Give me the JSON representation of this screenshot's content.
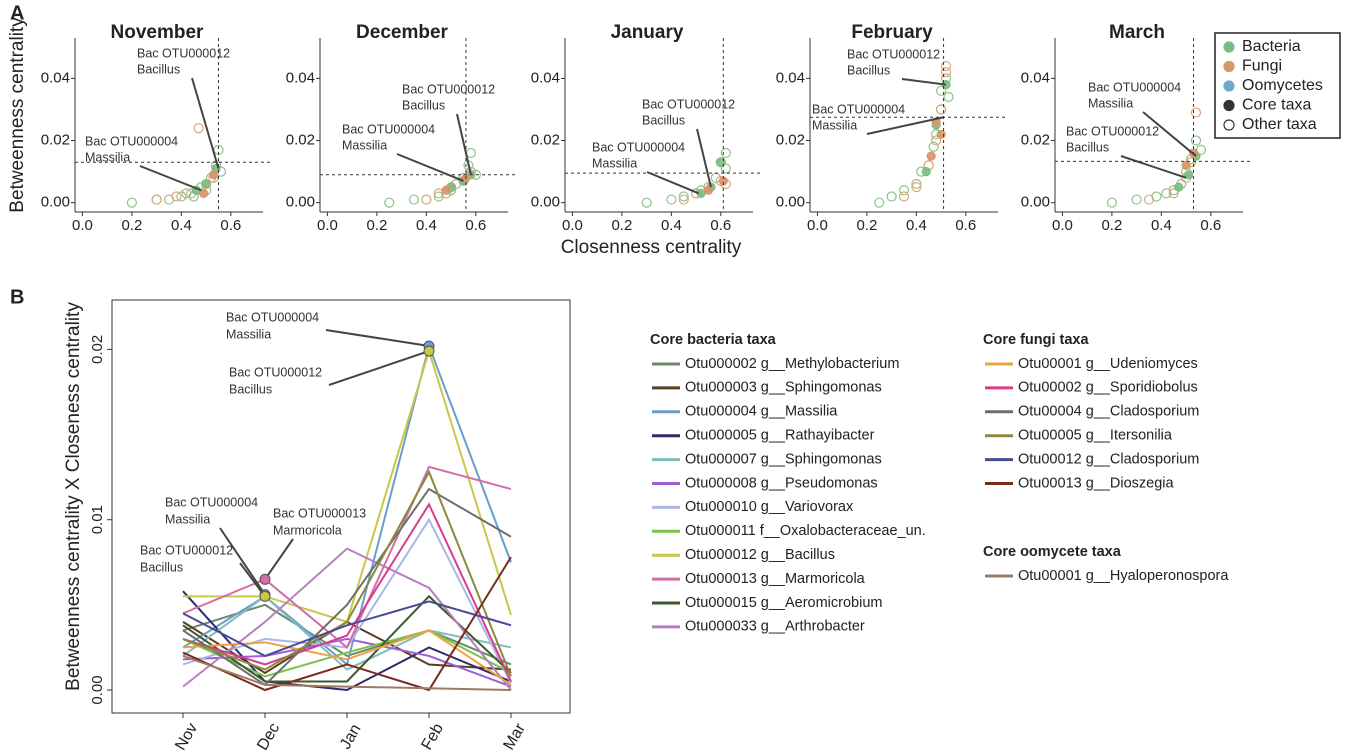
{
  "panel_labels": [
    "A",
    "B"
  ],
  "chart_data": [
    {
      "type": "scatter",
      "title": "November",
      "y_label": "Betweenness centrality",
      "xlim": [
        -0.03,
        0.73
      ],
      "ylim": [
        -0.003,
        0.053
      ],
      "xticks": [
        {
          "value": 0,
          "label": "0.0"
        },
        0.2,
        0.4,
        0.6
      ],
      "yticks": [
        {
          "value": 0,
          "label": "0.00"
        },
        {
          "value": 0.02,
          "label": "0.02"
        },
        {
          "value": 0.04,
          "label": "0.04"
        }
      ],
      "vline": 0.55,
      "hline": 0.013,
      "series": [
        {
          "color": "#8cc48c",
          "filled": false,
          "x": [
            0.2,
            0.3,
            0.35,
            0.4,
            0.42,
            0.45,
            0.48,
            0.5,
            0.52,
            0.54,
            0.55,
            0.56
          ],
          "y": [
            0.0,
            0.001,
            0.001,
            0.002,
            0.003,
            0.002,
            0.005,
            0.004,
            0.008,
            0.012,
            0.017,
            0.01
          ]
        },
        {
          "color": "#e0a47c",
          "filled": false,
          "x": [
            0.3,
            0.38,
            0.44,
            0.47,
            0.5,
            0.53
          ],
          "y": [
            0.001,
            0.002,
            0.003,
            0.024,
            0.006,
            0.008
          ]
        },
        {
          "color": "#7dbb80",
          "filled": true,
          "x": [
            0.46,
            0.5,
            0.54
          ],
          "y": [
            0.004,
            0.006,
            0.011
          ]
        },
        {
          "color": "#d8946a",
          "filled": true,
          "x": [
            0.49,
            0.53
          ],
          "y": [
            0.003,
            0.009
          ]
        }
      ],
      "annotations": [
        {
          "lines": [
            "Bac OTU000012",
            "Bacillus"
          ],
          "x": 0.55,
          "y": 0.011
        },
        {
          "lines": [
            "Bac OTU000004",
            "Massilia"
          ],
          "x": 0.48,
          "y": 0.004
        }
      ]
    },
    {
      "type": "scatter",
      "title": "December",
      "xlim": [
        -0.03,
        0.73
      ],
      "ylim": [
        -0.003,
        0.053
      ],
      "xticks": [
        {
          "value": 0,
          "label": "0.0"
        },
        0.2,
        0.4,
        0.6
      ],
      "yticks": [
        {
          "value": 0,
          "label": "0.00"
        },
        {
          "value": 0.02,
          "label": "0.02"
        },
        {
          "value": 0.04,
          "label": "0.04"
        }
      ],
      "vline": 0.56,
      "hline": 0.009,
      "series": [
        {
          "color": "#8cc48c",
          "filled": false,
          "x": [
            0.25,
            0.35,
            0.4,
            0.45,
            0.48,
            0.5,
            0.52,
            0.55,
            0.57,
            0.58,
            0.6
          ],
          "y": [
            0.0,
            0.001,
            0.001,
            0.002,
            0.003,
            0.004,
            0.006,
            0.008,
            0.012,
            0.016,
            0.009
          ]
        },
        {
          "color": "#e0a47c",
          "filled": false,
          "x": [
            0.4,
            0.45,
            0.5,
            0.55,
            0.58
          ],
          "y": [
            0.001,
            0.003,
            0.005,
            0.007,
            0.01
          ]
        },
        {
          "color": "#7dbb80",
          "filled": true,
          "x": [
            0.5,
            0.55,
            0.58
          ],
          "y": [
            0.005,
            0.007,
            0.009
          ]
        },
        {
          "color": "#d8946a",
          "filled": true,
          "x": [
            0.48,
            0.56
          ],
          "y": [
            0.004,
            0.008
          ]
        }
      ],
      "annotations": [
        {
          "lines": [
            "Bac OTU000012",
            "Bacillus"
          ],
          "x": 0.58,
          "y": 0.009
        },
        {
          "lines": [
            "Bac OTU000004",
            "Massilia"
          ],
          "x": 0.55,
          "y": 0.007
        }
      ]
    },
    {
      "type": "scatter",
      "title": "January",
      "x_label": "Closenness centrality",
      "xlim": [
        -0.03,
        0.73
      ],
      "ylim": [
        -0.003,
        0.053
      ],
      "xticks": [
        {
          "value": 0,
          "label": "0.0"
        },
        0.2,
        0.4,
        0.6
      ],
      "yticks": [
        {
          "value": 0,
          "label": "0.00"
        },
        {
          "value": 0.02,
          "label": "0.02"
        },
        {
          "value": 0.04,
          "label": "0.04"
        }
      ],
      "vline": 0.61,
      "hline": 0.0095,
      "series": [
        {
          "color": "#8cc48c",
          "filled": false,
          "x": [
            0.3,
            0.4,
            0.45,
            0.5,
            0.52,
            0.55,
            0.58,
            0.6,
            0.62,
            0.62
          ],
          "y": [
            0.0,
            0.001,
            0.002,
            0.003,
            0.004,
            0.005,
            0.008,
            0.013,
            0.011,
            0.016
          ]
        },
        {
          "color": "#e0a47c",
          "filled": false,
          "x": [
            0.45,
            0.5,
            0.55,
            0.6,
            0.62
          ],
          "y": [
            0.001,
            0.003,
            0.005,
            0.007,
            0.006
          ]
        },
        {
          "color": "#7dbb80",
          "filled": true,
          "x": [
            0.52,
            0.56,
            0.6
          ],
          "y": [
            0.003,
            0.005,
            0.013
          ]
        },
        {
          "color": "#d8946a",
          "filled": true,
          "x": [
            0.55,
            0.61
          ],
          "y": [
            0.004,
            0.007
          ]
        }
      ],
      "annotations": [
        {
          "lines": [
            "Bac OTU000012",
            "Bacillus"
          ],
          "x": 0.56,
          "y": 0.005
        },
        {
          "lines": [
            "Bac OTU000004",
            "Massilia"
          ],
          "x": 0.51,
          "y": 0.003
        }
      ]
    },
    {
      "type": "scatter",
      "title": "February",
      "xlim": [
        -0.03,
        0.73
      ],
      "ylim": [
        -0.003,
        0.053
      ],
      "xticks": [
        {
          "value": 0,
          "label": "0.0"
        },
        0.2,
        0.4,
        0.6
      ],
      "yticks": [
        {
          "value": 0,
          "label": "0.00"
        },
        {
          "value": 0.02,
          "label": "0.02"
        },
        {
          "value": 0.04,
          "label": "0.04"
        }
      ],
      "vline": 0.51,
      "hline": 0.0275,
      "series": [
        {
          "color": "#8cc48c",
          "filled": false,
          "x": [
            0.25,
            0.3,
            0.35,
            0.4,
            0.42,
            0.45,
            0.47,
            0.48,
            0.5,
            0.5,
            0.52,
            0.53
          ],
          "y": [
            0.0,
            0.002,
            0.004,
            0.006,
            0.01,
            0.012,
            0.018,
            0.022,
            0.03,
            0.036,
            0.04,
            0.034
          ]
        },
        {
          "color": "#e0a47c",
          "filled": false,
          "x": [
            0.35,
            0.4,
            0.45,
            0.48,
            0.5,
            0.52,
            0.52
          ],
          "y": [
            0.002,
            0.005,
            0.012,
            0.02,
            0.03,
            0.042,
            0.044
          ]
        },
        {
          "color": "#7dbb80",
          "filled": true,
          "x": [
            0.44,
            0.48,
            0.52
          ],
          "y": [
            0.01,
            0.025,
            0.038
          ]
        },
        {
          "color": "#d8946a",
          "filled": true,
          "x": [
            0.46,
            0.48,
            0.5
          ],
          "y": [
            0.015,
            0.026,
            0.022
          ]
        }
      ],
      "annotations": [
        {
          "lines": [
            "Bac OTU000012",
            "Bacillus"
          ],
          "x": 0.52,
          "y": 0.038
        },
        {
          "lines": [
            "Bac OTU000004",
            "Massilia"
          ],
          "x": 0.51,
          "y": 0.0275
        }
      ]
    },
    {
      "type": "scatter",
      "title": "March",
      "xlim": [
        -0.03,
        0.73
      ],
      "ylim": [
        -0.003,
        0.053
      ],
      "xticks": [
        {
          "value": 0,
          "label": "0.0"
        },
        0.2,
        0.4,
        0.6
      ],
      "yticks": [
        {
          "value": 0,
          "label": "0.00"
        },
        {
          "value": 0.02,
          "label": "0.02"
        },
        {
          "value": 0.04,
          "label": "0.04"
        }
      ],
      "vline": 0.53,
      "hline": 0.0133,
      "series": [
        {
          "color": "#8cc48c",
          "filled": false,
          "x": [
            0.2,
            0.3,
            0.38,
            0.42,
            0.45,
            0.48,
            0.5,
            0.52,
            0.54,
            0.56
          ],
          "y": [
            0.0,
            0.001,
            0.002,
            0.003,
            0.004,
            0.006,
            0.01,
            0.014,
            0.02,
            0.017
          ]
        },
        {
          "color": "#e0a47c",
          "filled": false,
          "x": [
            0.35,
            0.45,
            0.5,
            0.52,
            0.54
          ],
          "y": [
            0.001,
            0.003,
            0.008,
            0.013,
            0.029
          ]
        },
        {
          "color": "#7dbb80",
          "filled": true,
          "x": [
            0.47,
            0.51,
            0.54
          ],
          "y": [
            0.005,
            0.009,
            0.015
          ]
        },
        {
          "color": "#d8946a",
          "filled": true,
          "x": [
            0.5,
            0.53
          ],
          "y": [
            0.012,
            0.016
          ]
        }
      ],
      "annotations": [
        {
          "lines": [
            "Bac OTU000004",
            "Massilia"
          ],
          "x": 0.54,
          "y": 0.015
        },
        {
          "lines": [
            "Bac OTU000012",
            "Bacillus"
          ],
          "x": 0.5,
          "y": 0.008
        }
      ],
      "legend": [
        {
          "label": "Bacteria",
          "color": "#7dbb80",
          "filled": true
        },
        {
          "label": "Fungi",
          "color": "#d8946a",
          "filled": true
        },
        {
          "label": "Oomycetes",
          "color": "#6fa8d0",
          "filled": true
        },
        {
          "label": "Core taxa",
          "color": "#333333",
          "filled": true
        },
        {
          "label": "Other taxa",
          "color": "#333333",
          "filled": false
        }
      ]
    },
    {
      "type": "line",
      "y_label": "Betweenness centrality X Closeness centrality",
      "categories": [
        "Nov",
        "Dec",
        "Jan",
        "Feb",
        "Mar"
      ],
      "ylim": [
        -0.00135,
        0.0229
      ],
      "yticks": [
        {
          "value": 0,
          "label": "0.00"
        },
        {
          "value": 0.01,
          "label": "0.01"
        },
        {
          "value": 0.02,
          "label": "0.02"
        }
      ],
      "series_groups": [
        {
          "title": "Core bacteria taxa",
          "series": [
            {
              "name": "Otu000002 g__Methylobacterium",
              "color": "#6b8a6b",
              "values": [
                0.0035,
                0.005,
                0.002,
                0.0035,
                0.0015
              ]
            },
            {
              "name": "Otu000003 g__Sphingomonas",
              "color": "#5a3e22",
              "values": [
                0.004,
                0.001,
                0.004,
                0.0015,
                0.0012
              ]
            },
            {
              "name": "Otu000004 g__Massilia",
              "color": "#6a9ec8",
              "values": [
                0.0025,
                0.0055,
                0.0015,
                0.0202,
                0.0075
              ]
            },
            {
              "name": "Otu000005 g__Rathayibacter",
              "color": "#2e2a6e",
              "values": [
                0.0058,
                0.0005,
                0.0,
                0.0025,
                0.0005
              ]
            },
            {
              "name": "Otu000007 g__Sphingomonas",
              "color": "#7fbcbc",
              "values": [
                0.002,
                0.0055,
                0.0012,
                0.0035,
                0.0025
              ]
            },
            {
              "name": "Otu000008 g__Pseudomonas",
              "color": "#9b5fd6",
              "values": [
                0.0018,
                0.002,
                0.003,
                0.002,
                0.0002
              ]
            },
            {
              "name": "Otu000010 g__Variovorax",
              "color": "#a9b6ea",
              "values": [
                0.0015,
                0.003,
                0.0025,
                0.01,
                0.0004
              ]
            },
            {
              "name": "Otu000011 f__Oxalobacteraceae_un.",
              "color": "#7cc24c",
              "values": [
                0.003,
                0.0008,
                0.0022,
                0.0035,
                0.001
              ]
            },
            {
              "name": "Otu000012 g__Bacillus",
              "color": "#c9c648",
              "values": [
                0.0055,
                0.0055,
                0.004,
                0.0199,
                0.0044
              ]
            },
            {
              "name": "Otu000013 g__Marmoricola",
              "color": "#d16ea8",
              "values": [
                0.0045,
                0.0065,
                0.0025,
                0.0131,
                0.0118
              ]
            },
            {
              "name": "Otu000015 g__Aeromicrobium",
              "color": "#3d5a2e",
              "values": [
                0.0038,
                0.0005,
                0.0005,
                0.0055,
                0.001
              ]
            },
            {
              "name": "Otu000033 g__Arthrobacter",
              "color": "#b77fc0",
              "values": [
                0.0002,
                0.004,
                0.0083,
                0.006,
                0.0
              ]
            }
          ]
        },
        {
          "title": "Core fungi taxa",
          "series": [
            {
              "name": "Otu00001 g__Udeniomyces",
              "color": "#f0a040",
              "values": [
                0.0025,
                0.0028,
                0.0018,
                0.0035,
                0.0003
              ]
            },
            {
              "name": "Otu00002 g__Sporidiobolus",
              "color": "#d83c8a",
              "values": [
                0.003,
                0.0015,
                0.0032,
                0.0109,
                0.0005
              ]
            },
            {
              "name": "Otu00004 g__Cladosporium",
              "color": "#6e6e6e",
              "values": [
                0.0035,
                0.0003,
                0.005,
                0.0118,
                0.009
              ]
            },
            {
              "name": "Otu00005 g__Itersonilia",
              "color": "#8a8a3a",
              "values": [
                0.003,
                0.0012,
                0.004,
                0.0128,
                0.0008
              ]
            },
            {
              "name": "Otu00012 g__Cladosporium",
              "color": "#4a4a96",
              "values": [
                0.0045,
                0.002,
                0.0038,
                0.0052,
                0.0038
              ]
            },
            {
              "name": "Otu00013 g__Dioszegia",
              "color": "#7a2a20",
              "values": [
                0.0022,
                0.0,
                0.0015,
                0.0,
                0.0078
              ]
            }
          ]
        },
        {
          "title": "Core oomycete taxa",
          "series": [
            {
              "name": "Otu00001 g__Hyaloperonospora",
              "color": "#a07a60",
              "values": [
                0.002,
                0.0003,
                0.0002,
                0.0001,
                0.0
              ]
            }
          ]
        }
      ],
      "annotations": [
        {
          "lines": [
            "Bac OTU000004",
            "Massilia"
          ],
          "x": "Feb",
          "y": 0.0202,
          "color": "#6a9ec8"
        },
        {
          "lines": [
            "Bac OTU000012",
            "Bacillus"
          ],
          "x": "Feb",
          "y": 0.0199,
          "color": "#c9c648"
        },
        {
          "lines": [
            "Bac OTU000004",
            "Massilia"
          ],
          "x": "Dec",
          "y": 0.0056,
          "color": "#6a9ec8"
        },
        {
          "lines": [
            "Bac OTU000013",
            "Marmoricola"
          ],
          "x": "Dec",
          "y": 0.0065,
          "color": "#d16ea8"
        },
        {
          "lines": [
            "Bac OTU000012",
            "Bacillus"
          ],
          "x": "Dec",
          "y": 0.0055,
          "color": "#c9c648"
        }
      ]
    }
  ]
}
